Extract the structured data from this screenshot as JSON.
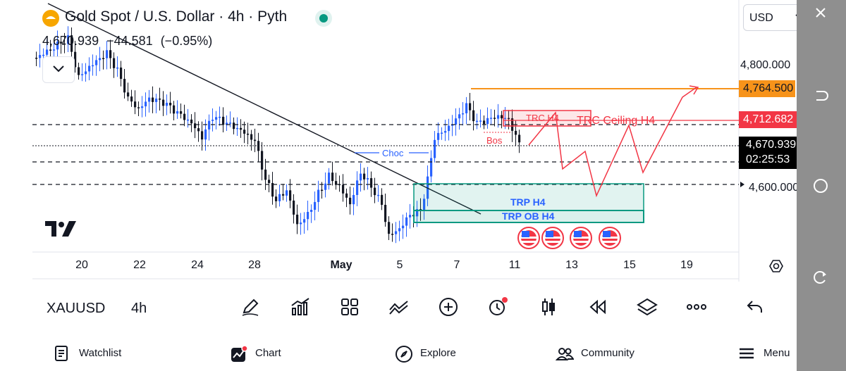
{
  "header": {
    "title": "Gold Spot / U.S. Dollar · 4h · Pyth",
    "last_price": "4,670.939",
    "change": "−44.581",
    "change_pct": "(−0.95%)"
  },
  "currency": {
    "selected": "USD"
  },
  "price_axis": {
    "labels": [
      "4,800.000",
      "4,600.000"
    ],
    "tags": [
      {
        "text": "4,764.500",
        "bg": "#f7931a",
        "fg": "#131722"
      },
      {
        "text": "4,712.682",
        "bg": "#f23645",
        "fg": "#ffffff"
      },
      {
        "text": "4,670.939",
        "bg": "#000000",
        "fg": "#ffffff"
      },
      {
        "text": "02:25:53",
        "bg": "#000000",
        "fg": "#ffffff"
      }
    ]
  },
  "time_axis": {
    "labels": [
      "20",
      "22",
      "24",
      "28",
      "May",
      "5",
      "7",
      "11",
      "13",
      "15",
      "19"
    ]
  },
  "annotations": {
    "choc": "Choc",
    "bos": "Bos",
    "trc_h4": "TRC H4",
    "trc_ceiling": "TRC Ceiling H4",
    "trp_h4": "TRP H4",
    "trp_ob": "TRP OB H4"
  },
  "colors": {
    "up": "#2962ff",
    "down": "#131722",
    "trendline": "#131722",
    "orange_line": "#f7931a",
    "red_annot": "#f23645",
    "green_box": "#089981",
    "blue_annot": "#2962ff"
  },
  "toolbar": {
    "symbol": "XAUUSD",
    "interval": "4h",
    "icons": [
      "pencil-icon",
      "indicators-icon",
      "layout-grid-icon",
      "compare-icon",
      "add-icon",
      "alert-icon",
      "candle-type-icon",
      "replay-icon",
      "layers-icon",
      "more-icon",
      "undo-icon"
    ]
  },
  "nav": {
    "watchlist": "Watchlist",
    "chart": "Chart",
    "explore": "Explore",
    "community": "Community",
    "menu": "Menu"
  }
}
